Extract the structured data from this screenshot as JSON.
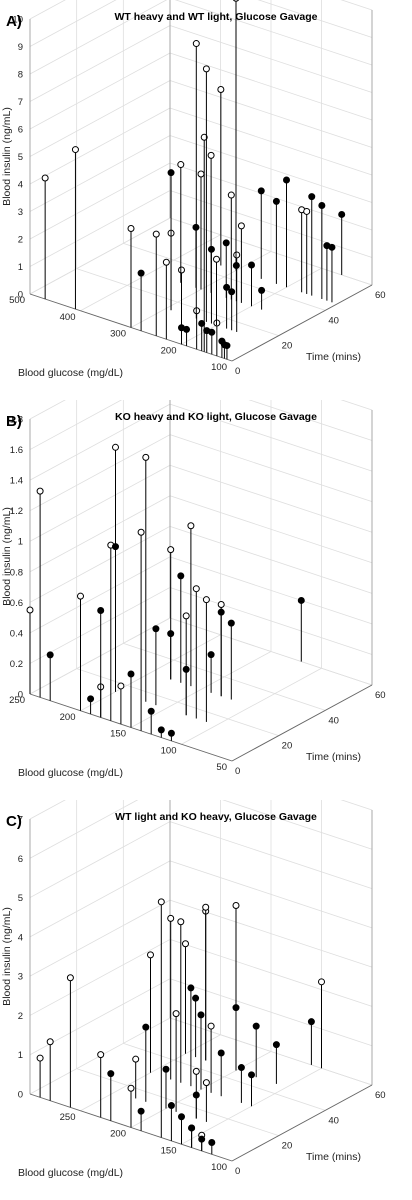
{
  "chart_data": [
    {
      "type": "scatter",
      "subtype": "3d-stem",
      "panel_label": "A)",
      "title": "WT heavy and WT light, Glucose Gavage",
      "xlabel": "Time (mins)",
      "ylabel": "Blood glucose (mg/dL)",
      "zlabel": "Blood insulin (ng/mL)",
      "xlim": [
        0,
        60
      ],
      "ylim": [
        100,
        500
      ],
      "zlim": [
        0,
        10
      ],
      "xticks": [
        "0",
        "20",
        "40",
        "60"
      ],
      "yticks": [
        "100",
        "200",
        "300",
        "400",
        "500"
      ],
      "zticks": [
        "0",
        "1",
        "2",
        "3",
        "4",
        "5",
        "6",
        "7",
        "8",
        "9",
        "10"
      ],
      "grid": true,
      "series": [
        {
          "marker": "open-circle",
          "points": [
            [
              0,
              470,
              4.4
            ],
            [
              0,
              410,
              5.8
            ],
            [
              0,
              300,
              3.6
            ],
            [
              0,
              250,
              3.7
            ],
            [
              0,
              230,
              2.8
            ],
            [
              0,
              200,
              2.7
            ],
            [
              0,
              170,
              1.4
            ],
            [
              0,
              130,
              1.2
            ],
            [
              0,
              155,
              7.8
            ],
            [
              15,
              290,
              2.8
            ],
            [
              15,
              200,
              2.4
            ],
            [
              15,
              160,
              2.8
            ],
            [
              15,
              220,
              9.2
            ],
            [
              15,
              240,
              10.0
            ],
            [
              30,
              340,
              4.3
            ],
            [
              30,
              300,
              4.2
            ],
            [
              30,
              280,
              5.0
            ],
            [
              30,
              240,
              3.8
            ],
            [
              30,
              220,
              2.8
            ],
            [
              45,
              330,
              6.4
            ],
            [
              45,
              300,
              9.9
            ],
            [
              45,
              170,
              3.0
            ],
            [
              45,
              160,
              3.0
            ]
          ]
        },
        {
          "marker": "filled-circle",
          "points": [
            [
              0,
              280,
              2.1
            ],
            [
              0,
              200,
              0.6
            ],
            [
              0,
              190,
              0.6
            ],
            [
              0,
              160,
              1.0
            ],
            [
              0,
              150,
              0.8
            ],
            [
              0,
              140,
              0.8
            ],
            [
              0,
              120,
              0.6
            ],
            [
              0,
              115,
              0.5
            ],
            [
              0,
              110,
              0.5
            ],
            [
              15,
              290,
              5.0
            ],
            [
              15,
              210,
              2.7
            ],
            [
              15,
              180,
              1.5
            ],
            [
              15,
              170,
              1.4
            ],
            [
              30,
              310,
              2.2
            ],
            [
              30,
              250,
              2.0
            ],
            [
              30,
              230,
              1.3
            ],
            [
              30,
              200,
              1.5
            ],
            [
              30,
              180,
              0.7
            ],
            [
              45,
              250,
              3.2
            ],
            [
              45,
              220,
              3.0
            ],
            [
              45,
              200,
              3.9
            ],
            [
              45,
              150,
              3.6
            ],
            [
              45,
              130,
              3.4
            ],
            [
              45,
              120,
              2.0
            ],
            [
              45,
              110,
              2.0
            ],
            [
              60,
              160,
              2.2
            ]
          ]
        }
      ]
    },
    {
      "type": "scatter",
      "subtype": "3d-stem",
      "panel_label": "B)",
      "title": "KO heavy and KO light, Glucose Gavage",
      "xlabel": "Time (mins)",
      "ylabel": "Blood glucose (mg/dL)",
      "zlabel": "Blood insulin (ng/mL)",
      "xlim": [
        0,
        60
      ],
      "ylim": [
        50,
        250
      ],
      "zlim": [
        0,
        1.8
      ],
      "xticks": [
        "0",
        "20",
        "40",
        "60"
      ],
      "yticks": [
        "50",
        "100",
        "150",
        "200",
        "250"
      ],
      "zticks": [
        "0",
        "0.2",
        "0.4",
        "0.6",
        "0.8",
        "1",
        "1.2",
        "1.4",
        "1.6",
        "1.8"
      ],
      "grid": true,
      "series": [
        {
          "marker": "open-circle",
          "points": [
            [
              0,
              240,
              1.35
            ],
            [
              0,
              250,
              0.55
            ],
            [
              0,
              200,
              0.75
            ],
            [
              0,
              180,
              0.2
            ],
            [
              0,
              160,
              0.25
            ],
            [
              0,
              170,
              1.15
            ],
            [
              0,
              140,
              1.3
            ],
            [
              15,
              200,
              1.6
            ],
            [
              15,
              170,
              1.6
            ],
            [
              15,
              130,
              0.65
            ],
            [
              15,
              120,
              0.85
            ],
            [
              15,
              110,
              0.8
            ],
            [
              30,
              180,
              0.85
            ],
            [
              30,
              160,
              1.05
            ],
            [
              30,
              130,
              0.6
            ]
          ]
        },
        {
          "marker": "filled-circle",
          "points": [
            [
              0,
              230,
              0.3
            ],
            [
              0,
              190,
              0.1
            ],
            [
              0,
              180,
              0.7
            ],
            [
              0,
              150,
              0.35
            ],
            [
              0,
              130,
              0.15
            ],
            [
              0,
              120,
              0.05
            ],
            [
              0,
              110,
              0.05
            ],
            [
              15,
              200,
              0.95
            ],
            [
              15,
              160,
              0.5
            ],
            [
              15,
              130,
              0.3
            ],
            [
              30,
              180,
              0.3
            ],
            [
              30,
              140,
              0.25
            ],
            [
              30,
              170,
              0.7
            ],
            [
              30,
              130,
              0.55
            ],
            [
              30,
              120,
              0.5
            ],
            [
              60,
              120,
              0.4
            ]
          ]
        }
      ]
    },
    {
      "type": "scatter",
      "subtype": "3d-stem",
      "panel_label": "C)",
      "title": "WT light and KO heavy, Glucose Gavage",
      "xlabel": "Time (mins)",
      "ylabel": "Blood glucose (mg/dL)",
      "zlabel": "Blood insulin (ng/mL)",
      "xlim": [
        0,
        60
      ],
      "ylim": [
        100,
        300
      ],
      "zlim": [
        0,
        7
      ],
      "xticks": [
        "0",
        "20",
        "40",
        "60"
      ],
      "yticks": [
        "100",
        "150",
        "200",
        "250"
      ],
      "zticks": [
        "0",
        "1",
        "2",
        "3",
        "4",
        "5",
        "6",
        "7"
      ],
      "grid": true,
      "series": [
        {
          "marker": "open-circle",
          "points": [
            [
              0,
              290,
              1.0
            ],
            [
              0,
              280,
              1.5
            ],
            [
              0,
              260,
              3.3
            ],
            [
              0,
              230,
              1.6
            ],
            [
              0,
              200,
              1.0
            ],
            [
              0,
              170,
              6.0
            ],
            [
              0,
              140,
              0.5
            ],
            [
              0,
              130,
              0.4
            ],
            [
              15,
              230,
              1.0
            ],
            [
              15,
              190,
              2.5
            ],
            [
              15,
              170,
              1.2
            ],
            [
              15,
              160,
              1.0
            ],
            [
              30,
              250,
              3.0
            ],
            [
              30,
              230,
              4.1
            ],
            [
              30,
              220,
              4.1
            ],
            [
              30,
              190,
              1.7
            ],
            [
              45,
              250,
              2.8
            ],
            [
              45,
              230,
              3.8
            ],
            [
              45,
              230,
              3.9
            ],
            [
              45,
              200,
              4.2
            ],
            [
              60,
              150,
              2.2
            ]
          ]
        },
        {
          "marker": "filled-circle",
          "points": [
            [
              0,
              220,
              1.2
            ],
            [
              0,
              190,
              0.5
            ],
            [
              0,
              160,
              0.9
            ],
            [
              0,
              150,
              0.7
            ],
            [
              0,
              140,
              0.5
            ],
            [
              0,
              130,
              0.3
            ],
            [
              0,
              120,
              0.3
            ],
            [
              15,
              220,
              1.9
            ],
            [
              15,
              200,
              1.0
            ],
            [
              15,
              170,
              0.6
            ],
            [
              30,
              210,
              2.5
            ],
            [
              30,
              200,
              1.9
            ],
            [
              30,
              180,
              1.1
            ],
            [
              30,
              160,
              0.9
            ],
            [
              30,
              150,
              0.8
            ],
            [
              45,
              240,
              1.5
            ],
            [
              45,
              200,
              1.6
            ],
            [
              45,
              180,
              1.3
            ],
            [
              45,
              160,
              1.0
            ],
            [
              60,
              160,
              1.1
            ]
          ]
        }
      ]
    }
  ]
}
